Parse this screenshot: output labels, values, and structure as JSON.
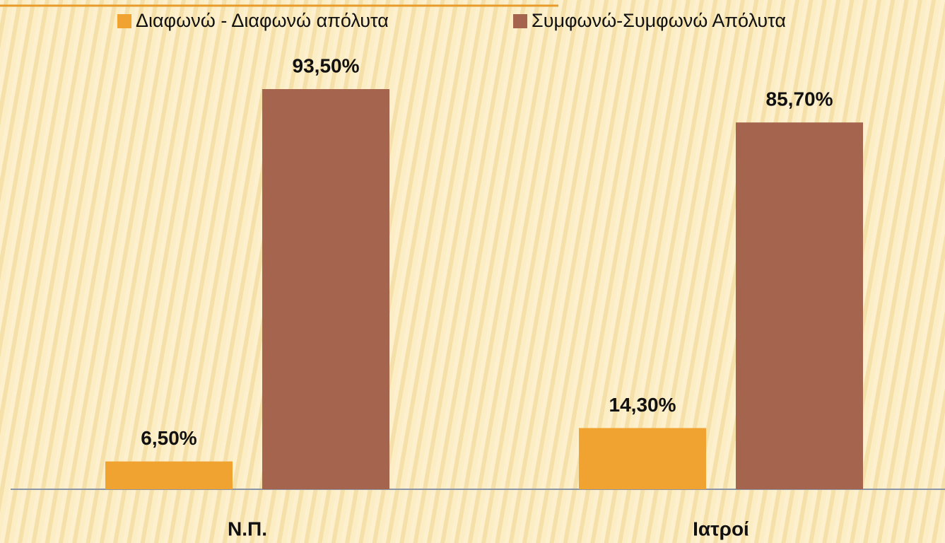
{
  "chart_data": {
    "type": "bar",
    "categories": [
      "Ν.Π.",
      "Ιατροί"
    ],
    "series": [
      {
        "name": "Διαφωνώ - Διαφωνώ απόλυτα",
        "color": "#f0a330",
        "values": [
          6.5,
          14.3
        ],
        "value_labels": [
          "6,50%",
          "14,30%"
        ]
      },
      {
        "name": "Συμφωνώ-Συμφωνώ Απόλυτα",
        "color": "#a5644e",
        "values": [
          93.5,
          85.7
        ],
        "value_labels": [
          "93,50%",
          "85,70%"
        ]
      }
    ],
    "legend": "top"
  }
}
